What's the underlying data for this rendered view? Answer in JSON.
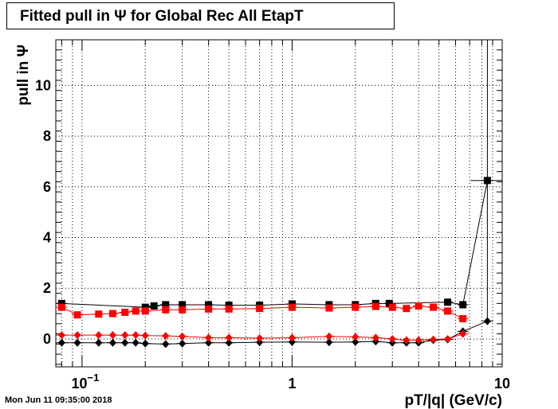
{
  "title": "Fitted pull in  Ψ  for Global Rec All EtapT",
  "footer": "Mon Jun 11 09:35:00 2018",
  "chart_data": {
    "type": "scatter",
    "title": "Fitted pull in  Ψ  for Global Rec All EtapT",
    "xlabel": "pT/|q| (GeV/c)",
    "ylabel": "pull in  Ψ",
    "xscale": "log",
    "xlim": [
      0.075,
      10
    ],
    "ylim": [
      -1.1,
      11.8
    ],
    "grid": true,
    "x_tick_labels": [
      {
        "value": 0.1,
        "base": "10",
        "exp": "−1"
      },
      {
        "value": 1,
        "base": "1",
        "exp": ""
      },
      {
        "value": 10,
        "base": "10",
        "exp": ""
      }
    ],
    "y_ticks": [
      0,
      2,
      4,
      6,
      8,
      10
    ],
    "series": [
      {
        "color": "#000000",
        "marker": "square",
        "points": [
          [
            0.08,
            1.4
          ],
          [
            0.2,
            1.25
          ],
          [
            0.22,
            1.3
          ],
          [
            0.25,
            1.35
          ],
          [
            0.3,
            1.35
          ],
          [
            0.4,
            1.35
          ],
          [
            0.5,
            1.33
          ],
          [
            0.7,
            1.33
          ],
          [
            1.0,
            1.38
          ],
          [
            1.5,
            1.35
          ],
          [
            2.0,
            1.35
          ],
          [
            2.5,
            1.4
          ],
          [
            2.9,
            1.4
          ],
          [
            5.5,
            1.45
          ],
          [
            6.5,
            1.35
          ],
          [
            8.5,
            6.25
          ]
        ],
        "errors_x": [
          [
            8.0,
            9.4
          ]
        ],
        "errors_y": [
          [
            0.6,
            11.8
          ]
        ]
      },
      {
        "color": "#ff0000",
        "marker": "square",
        "points": [
          [
            0.08,
            1.25
          ],
          [
            0.095,
            0.95
          ],
          [
            0.12,
            0.98
          ],
          [
            0.14,
            1.0
          ],
          [
            0.16,
            1.05
          ],
          [
            0.18,
            1.1
          ],
          [
            0.2,
            1.1
          ],
          [
            0.25,
            1.15
          ],
          [
            0.3,
            1.15
          ],
          [
            0.4,
            1.18
          ],
          [
            0.5,
            1.18
          ],
          [
            0.7,
            1.2
          ],
          [
            1.0,
            1.25
          ],
          [
            1.5,
            1.22
          ],
          [
            2.0,
            1.25
          ],
          [
            2.5,
            1.28
          ],
          [
            3.0,
            1.25
          ],
          [
            3.5,
            1.2
          ],
          [
            4.0,
            1.3
          ],
          [
            4.7,
            1.25
          ],
          [
            5.5,
            1.1
          ],
          [
            6.5,
            0.8
          ]
        ]
      },
      {
        "color": "#000000",
        "marker": "diamond",
        "points": [
          [
            0.08,
            -0.15
          ],
          [
            0.095,
            -0.15
          ],
          [
            0.12,
            -0.15
          ],
          [
            0.14,
            -0.15
          ],
          [
            0.16,
            -0.15
          ],
          [
            0.18,
            -0.15
          ],
          [
            0.2,
            -0.18
          ],
          [
            0.25,
            -0.2
          ],
          [
            0.3,
            -0.18
          ],
          [
            0.4,
            -0.15
          ],
          [
            0.5,
            -0.15
          ],
          [
            0.7,
            -0.13
          ],
          [
            1.0,
            -0.12
          ],
          [
            1.5,
            -0.13
          ],
          [
            2.0,
            -0.12
          ],
          [
            2.5,
            -0.1
          ],
          [
            3.0,
            -0.15
          ],
          [
            3.5,
            -0.15
          ],
          [
            4.0,
            -0.15
          ],
          [
            4.7,
            -0.05
          ],
          [
            5.5,
            -0.02
          ],
          [
            6.5,
            0.3
          ],
          [
            8.5,
            0.7
          ]
        ]
      },
      {
        "color": "#ff0000",
        "marker": "diamond",
        "points": [
          [
            0.08,
            0.15
          ],
          [
            0.095,
            0.15
          ],
          [
            0.12,
            0.15
          ],
          [
            0.14,
            0.15
          ],
          [
            0.16,
            0.15
          ],
          [
            0.18,
            0.15
          ],
          [
            0.2,
            0.13
          ],
          [
            0.25,
            0.12
          ],
          [
            0.3,
            0.1
          ],
          [
            0.4,
            0.05
          ],
          [
            0.5,
            0.05
          ],
          [
            0.7,
            0.03
          ],
          [
            1.0,
            0.05
          ],
          [
            1.5,
            0.1
          ],
          [
            2.0,
            0.08
          ],
          [
            2.5,
            0.05
          ],
          [
            3.0,
            0.0
          ],
          [
            3.5,
            -0.05
          ],
          [
            4.0,
            -0.05
          ],
          [
            4.7,
            -0.02
          ],
          [
            5.5,
            0.0
          ],
          [
            6.5,
            0.2
          ]
        ]
      }
    ]
  }
}
